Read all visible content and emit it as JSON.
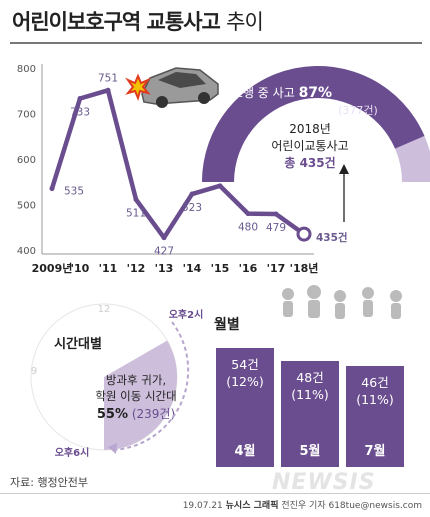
{
  "title": {
    "main": "어린이보호구역 교통사고",
    "sub": "추이"
  },
  "chart_data": [
    {
      "type": "line",
      "x": [
        "2009년",
        "'10",
        "'11",
        "'12",
        "'13",
        "'14",
        "'15",
        "'16",
        "'17",
        "'18년"
      ],
      "values": [
        535,
        733,
        751,
        511,
        427,
        523,
        541,
        480,
        479,
        435
      ],
      "value_labels": [
        "535",
        "733",
        "751",
        "511",
        "427",
        "523",
        "541",
        "480",
        "479",
        "435건"
      ],
      "yticks": [
        "800",
        "700",
        "600",
        "500",
        "400"
      ],
      "ylim": [
        400,
        800
      ],
      "grid": false,
      "color": "#6a4d8f"
    },
    {
      "type": "pie",
      "title": "시간대별",
      "slice_text": "방과후 귀가, 학원 이동 시간대",
      "slice_percent": "55%",
      "slice_count": "(239건)",
      "value": 55,
      "clock_marks": [
        "12",
        "9"
      ],
      "from_label": "오후2시",
      "to_label": "오후6시"
    },
    {
      "type": "bar",
      "title": "월별",
      "categories": [
        "4월",
        "5월",
        "7월"
      ],
      "values": [
        54,
        48,
        46
      ],
      "value_labels": [
        "54건",
        "48건",
        "46건"
      ],
      "percent_labels": [
        "(12%)",
        "(11%)",
        "(11%)"
      ]
    }
  ],
  "gauge": {
    "label": "보행 중 사고",
    "percent": "87%",
    "count": "(377건)",
    "value": 87,
    "center_line1": "2018년",
    "center_line2": "어린이교통사고",
    "total_prefix": "총",
    "total_value": "435건"
  },
  "source": "자료: 행정안전부",
  "credit": {
    "date": "19.07.21",
    "agency": "뉴시스 그래픽",
    "author": "전진우 기자 618tue@newsis.com"
  },
  "watermark": "NEWSIS",
  "colors": {
    "accent": "#6a4d8f",
    "light": "#cdbfdb",
    "axis": "#888888"
  }
}
